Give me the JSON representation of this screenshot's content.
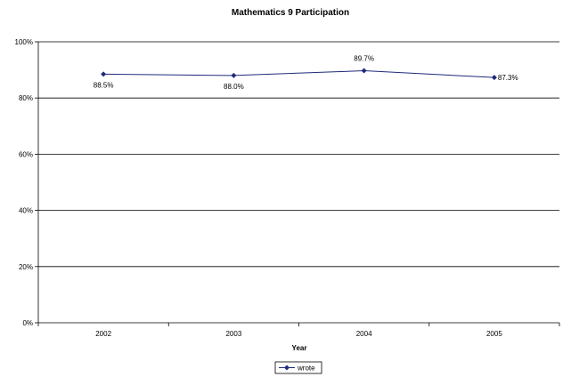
{
  "chart_data": {
    "type": "line",
    "title": "Mathematics 9 Participation",
    "xlabel": "Year",
    "ylabel": "",
    "categories": [
      "2002",
      "2003",
      "2004",
      "2005"
    ],
    "series": [
      {
        "name": "wrote",
        "values": [
          88.5,
          88.0,
          89.7,
          87.3
        ],
        "labels": [
          "88.5%",
          "88.0%",
          "89.7%",
          "87.3%"
        ],
        "color": "#1f2a7a"
      }
    ],
    "ylim": [
      0,
      100
    ],
    "yticks": [
      0,
      20,
      40,
      60,
      80,
      100
    ],
    "ytick_labels": [
      "0%",
      "20%",
      "40%",
      "60%",
      "80%",
      "100%"
    ],
    "grid": true,
    "legend_position": "bottom"
  }
}
